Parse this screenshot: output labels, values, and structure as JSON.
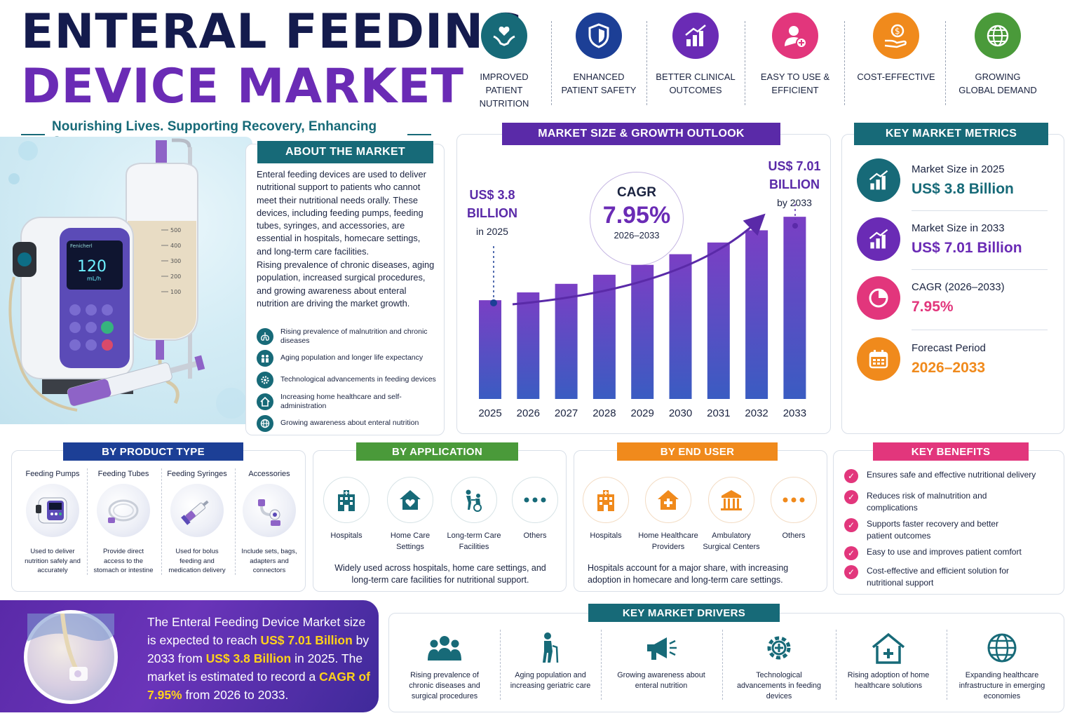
{
  "header": {
    "title_line1": "ENTERAL FEEDING",
    "title_line2": "DEVICE MARKET",
    "tagline": "Nourishing Lives. Supporting Recovery, Enhancing Care."
  },
  "colors": {
    "navy": "#141b4d",
    "purple": "#6a2bb5",
    "teal": "#176a78",
    "pink": "#e2367c",
    "orange": "#f08a1c",
    "green": "#4a9a3a",
    "blue": "#1c4aa0"
  },
  "features": [
    {
      "label": "IMPROVED PATIENT NUTRITION",
      "icon": "hands-heart-icon"
    },
    {
      "label": "ENHANCED PATIENT SAFETY",
      "icon": "shield-icon"
    },
    {
      "label": "BETTER CLINICAL OUTCOMES",
      "icon": "growth-chart-icon"
    },
    {
      "label": "EASY TO USE & EFFICIENT",
      "icon": "user-plus-icon"
    },
    {
      "label": "COST-EFFECTIVE",
      "icon": "hand-dollar-icon"
    },
    {
      "label": "GROWING GLOBAL DEMAND",
      "icon": "globe-icon"
    }
  ],
  "hero": {
    "pump_brand": "Fenicherl",
    "pump_rate": "120",
    "pump_unit": "mL/h",
    "bag_marks": [
      "500",
      "400",
      "300",
      "200",
      "100"
    ]
  },
  "about": {
    "heading": "ABOUT THE MARKET",
    "para1": "Enteral feeding devices are used to deliver nutritional support to patients who cannot meet their nutritional needs orally. These devices, including feeding pumps, feeding tubes, syringes, and accessories, are essential in hospitals, homecare settings, and long-term care facilities.",
    "para2": "Rising prevalence of chronic diseases, aging population, increased surgical procedures, and growing awareness about enteral nutrition are driving the market growth.",
    "bullets": [
      {
        "text": "Rising prevalence of malnutrition and chronic diseases",
        "icon": "lungs-icon"
      },
      {
        "text": "Aging population and longer life expectancy",
        "icon": "people-icon"
      },
      {
        "text": "Technological advancements in feeding devices",
        "icon": "gear-icon"
      },
      {
        "text": "Increasing home healthcare and self-administration",
        "icon": "home-icon"
      },
      {
        "text": "Growing awareness about enteral nutrition",
        "icon": "globe-icon"
      }
    ]
  },
  "growth": {
    "heading": "MARKET SIZE & GROWTH OUTLOOK",
    "start_value": "US$ 3.8",
    "start_unit": "BILLION",
    "start_year": "in 2025",
    "end_value": "US$ 7.01",
    "end_unit": "BILLION",
    "end_year": "by 2033",
    "cagr_label": "CAGR",
    "cagr_value": "7.95%",
    "cagr_period": "2026–2033"
  },
  "chart_data": {
    "type": "bar",
    "categories": [
      "2025",
      "2026",
      "2027",
      "2028",
      "2029",
      "2030",
      "2031",
      "2032",
      "2033"
    ],
    "values": [
      3.8,
      4.1,
      4.43,
      4.78,
      5.16,
      5.57,
      6.02,
      6.49,
      7.01
    ],
    "title": "MARKET SIZE & GROWTH OUTLOOK",
    "xlabel": "",
    "ylabel": "",
    "ylim": [
      0,
      7.5
    ],
    "grid": false
  },
  "metrics": {
    "heading": "KEY MARKET METRICS",
    "items": [
      {
        "label": "Market Size in 2025",
        "value": "US$ 3.8 Billion",
        "color": "#176a78",
        "icon": "growth-chart-icon"
      },
      {
        "label": "Market Size in 2033",
        "value": "US$ 7.01 Billion",
        "color": "#6a2bb5",
        "icon": "growth-chart-icon"
      },
      {
        "label": "CAGR (2026–2033)",
        "value": "7.95%",
        "color": "#e2367c",
        "icon": "pie-chart-icon"
      },
      {
        "label": "Forecast Period",
        "value": "2026–2033",
        "color": "#f08a1c",
        "icon": "calendar-icon"
      }
    ]
  },
  "product": {
    "heading": "BY PRODUCT TYPE",
    "items": [
      {
        "title": "Feeding Pumps",
        "desc": "Used to deliver nutrition safely and accurately"
      },
      {
        "title": "Feeding Tubes",
        "desc": "Provide direct access to the stomach or intestine"
      },
      {
        "title": "Feeding Syringes",
        "desc": "Used for bolus feeding and medication delivery"
      },
      {
        "title": "Accessories",
        "desc": "Include sets, bags, adapters and connectors"
      }
    ]
  },
  "application": {
    "heading": "BY APPLICATION",
    "items": [
      {
        "label": "Hospitals",
        "icon": "hospital-icon"
      },
      {
        "label": "Home Care Settings",
        "icon": "home-heart-icon"
      },
      {
        "label": "Long-term Care Facilities",
        "icon": "caregiver-icon"
      },
      {
        "label": "Others",
        "icon": "more-icon"
      }
    ],
    "note": "Widely used across hospitals, home care settings, and long-term care facilities for nutritional support."
  },
  "enduser": {
    "heading": "BY END USER",
    "items": [
      {
        "label": "Hospitals",
        "icon": "hospital-icon"
      },
      {
        "label": "Home Healthcare Providers",
        "icon": "home-cross-icon"
      },
      {
        "label": "Ambulatory Surgical Centers",
        "icon": "building-icon"
      },
      {
        "label": "Others",
        "icon": "more-icon"
      }
    ],
    "note": "Hospitals account for a major share, with increasing adoption in homecare and long-term care settings."
  },
  "benefits": {
    "heading": "KEY BENEFITS",
    "items": [
      "Ensures safe and effective nutritional delivery",
      "Reduces risk of malnutrition and complications",
      "Supports faster recovery and better patient outcomes",
      "Easy to use and improves patient comfort",
      "Cost-effective and efficient solution for nutritional support"
    ]
  },
  "summary": {
    "t1": "The Enteral Feeding Device Market size is expected to reach ",
    "h1": "US$ 7.01 Billion",
    "t2": " by 2033 from ",
    "h2": "US$ 3.8 Billion",
    "t3": " in 2025. The market is estimated to record a ",
    "h3": "CAGR of 7.95%",
    "t4": " from 2026 to 2033."
  },
  "drivers": {
    "heading": "KEY MARKET DRIVERS",
    "items": [
      {
        "label": "Rising prevalence of chronic diseases and surgical procedures",
        "icon": "group-icon"
      },
      {
        "label": "Aging population and increasing geriatric care",
        "icon": "elderly-icon"
      },
      {
        "label": "Growing awareness about enteral nutrition",
        "icon": "megaphone-icon"
      },
      {
        "label": "Technological advancements in feeding devices",
        "icon": "gear-icon"
      },
      {
        "label": "Rising adoption of home healthcare solutions",
        "icon": "home-cross-icon"
      },
      {
        "label": "Expanding healthcare infrastructure in emerging economies",
        "icon": "globe-icon"
      }
    ]
  }
}
